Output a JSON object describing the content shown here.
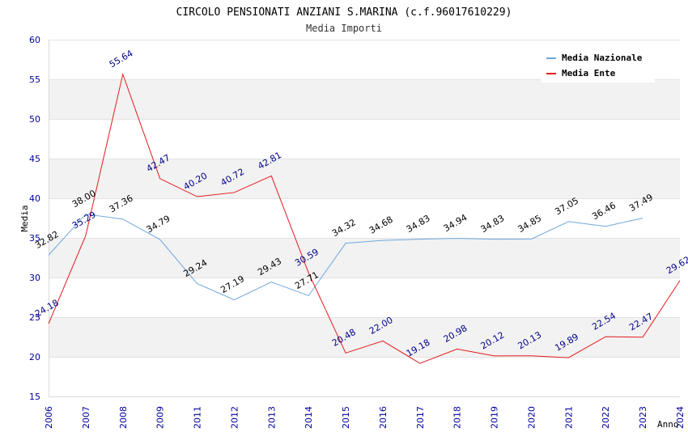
{
  "chart_data": {
    "type": "line",
    "title": "CIRCOLO PENSIONATI ANZIANI S.MARINA (c.f.96017610229)",
    "subtitle": "Media Importi",
    "xlabel": "Anno",
    "ylabel": "Media",
    "ylim": [
      15,
      60
    ],
    "yticks": [
      "15",
      "20",
      "25",
      "30",
      "35",
      "40",
      "45",
      "50",
      "55",
      "60"
    ],
    "categories": [
      "2006",
      "2007",
      "2008",
      "2009",
      "2011",
      "2012",
      "2013",
      "2014",
      "2015",
      "2016",
      "2017",
      "2018",
      "2019",
      "2020",
      "2021",
      "2022",
      "2023",
      "2024"
    ],
    "grid": "horizontal bands",
    "legend_position": "top-right",
    "series": [
      {
        "name": "Media Nazionale",
        "color": "#6fa8dc",
        "label_color": "#000000",
        "values": [
          32.82,
          38.0,
          37.36,
          34.79,
          29.24,
          27.19,
          29.43,
          27.71,
          34.32,
          34.68,
          34.83,
          34.94,
          34.83,
          34.85,
          37.05,
          36.46,
          37.49,
          null
        ],
        "labels": [
          "32.82",
          "38.00",
          "37.36",
          "34.79",
          "29.24",
          "27.19",
          "29.43",
          "27.71",
          "34.32",
          "34.68",
          "34.83",
          "34.94",
          "34.83",
          "34.85",
          "37.05",
          "36.46",
          "37.49",
          ""
        ]
      },
      {
        "name": "Media Ente",
        "color": "#e31a1c",
        "label_color": "#00008b",
        "values": [
          24.18,
          35.29,
          55.64,
          42.47,
          40.2,
          40.72,
          42.81,
          30.59,
          20.48,
          22.0,
          19.18,
          20.98,
          20.12,
          20.13,
          19.89,
          22.54,
          22.47,
          29.62
        ],
        "labels": [
          "24.18",
          "35.29",
          "55.64",
          "42.47",
          "40.20",
          "40.72",
          "42.81",
          "30.59",
          "20.48",
          "22.00",
          "19.18",
          "20.98",
          "20.12",
          "20.13",
          "19.89",
          "22.54",
          "22.47",
          "29.62"
        ]
      }
    ]
  }
}
